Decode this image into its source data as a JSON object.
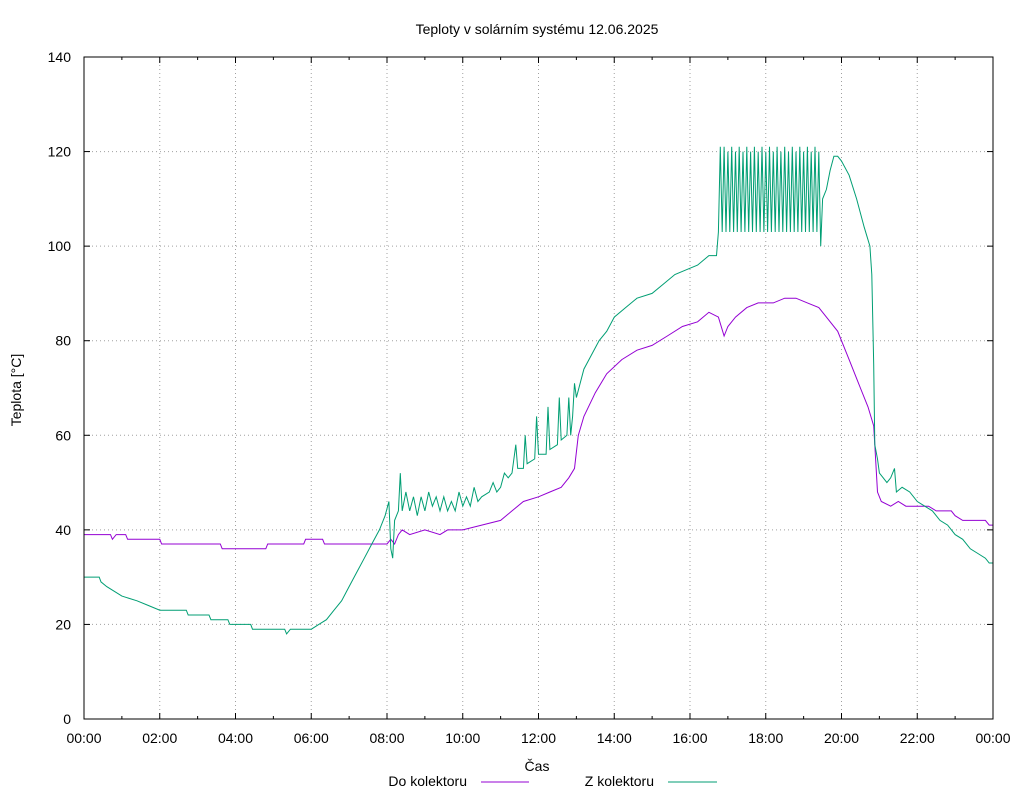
{
  "chart_data": {
    "type": "line",
    "title": "Teploty v solárním systému 12.06.2025",
    "xlabel": "Čas",
    "ylabel": "Teplota [°C]",
    "xlim": [
      0,
      24
    ],
    "ylim": [
      0,
      140
    ],
    "x_ticks": [
      "00:00",
      "02:00",
      "04:00",
      "06:00",
      "08:00",
      "10:00",
      "12:00",
      "14:00",
      "16:00",
      "18:00",
      "20:00",
      "22:00",
      "00:00"
    ],
    "y_ticks": [
      0,
      20,
      40,
      60,
      80,
      100,
      120,
      140
    ],
    "grid": true,
    "legend_position": "bottom-center",
    "series": [
      {
        "name": "Do kolektoru",
        "color": "#9400d3",
        "points": [
          [
            0,
            39
          ],
          [
            0.7,
            39
          ],
          [
            0.75,
            38
          ],
          [
            0.85,
            39
          ],
          [
            1.1,
            39
          ],
          [
            1.15,
            38
          ],
          [
            2.0,
            38
          ],
          [
            2.05,
            37
          ],
          [
            3.6,
            37
          ],
          [
            3.65,
            36
          ],
          [
            4.8,
            36
          ],
          [
            4.85,
            37
          ],
          [
            5.8,
            37
          ],
          [
            5.85,
            38
          ],
          [
            6.3,
            38
          ],
          [
            6.35,
            37
          ],
          [
            8.0,
            37
          ],
          [
            8.1,
            38
          ],
          [
            8.2,
            37
          ],
          [
            8.3,
            39
          ],
          [
            8.4,
            40
          ],
          [
            8.6,
            39
          ],
          [
            9.0,
            40
          ],
          [
            9.4,
            39
          ],
          [
            9.6,
            40
          ],
          [
            10.0,
            40
          ],
          [
            10.5,
            41
          ],
          [
            11.0,
            42
          ],
          [
            11.3,
            44
          ],
          [
            11.6,
            46
          ],
          [
            12.0,
            47
          ],
          [
            12.3,
            48
          ],
          [
            12.6,
            49
          ],
          [
            12.8,
            51
          ],
          [
            12.95,
            53
          ],
          [
            13.05,
            60
          ],
          [
            13.2,
            64
          ],
          [
            13.5,
            69
          ],
          [
            13.8,
            73
          ],
          [
            14.2,
            76
          ],
          [
            14.6,
            78
          ],
          [
            15.0,
            79
          ],
          [
            15.4,
            81
          ],
          [
            15.8,
            83
          ],
          [
            16.2,
            84
          ],
          [
            16.5,
            86
          ],
          [
            16.75,
            85
          ],
          [
            16.9,
            81
          ],
          [
            17.0,
            83
          ],
          [
            17.2,
            85
          ],
          [
            17.5,
            87
          ],
          [
            17.8,
            88
          ],
          [
            18.2,
            88
          ],
          [
            18.5,
            89
          ],
          [
            18.8,
            89
          ],
          [
            19.1,
            88
          ],
          [
            19.4,
            87
          ],
          [
            19.6,
            85
          ],
          [
            19.9,
            82
          ],
          [
            20.2,
            76
          ],
          [
            20.5,
            70
          ],
          [
            20.7,
            66
          ],
          [
            20.85,
            62
          ],
          [
            20.9,
            55
          ],
          [
            20.95,
            48
          ],
          [
            21.05,
            46
          ],
          [
            21.3,
            45
          ],
          [
            21.5,
            46
          ],
          [
            21.7,
            45
          ],
          [
            22.3,
            45
          ],
          [
            22.5,
            44
          ],
          [
            22.9,
            44
          ],
          [
            23.0,
            43
          ],
          [
            23.2,
            42
          ],
          [
            23.8,
            42
          ],
          [
            23.9,
            41
          ],
          [
            24.0,
            41
          ]
        ]
      },
      {
        "name": "Z kolektoru",
        "color": "#009e73",
        "points": [
          [
            0,
            30
          ],
          [
            0.4,
            30
          ],
          [
            0.45,
            29
          ],
          [
            0.6,
            28
          ],
          [
            0.8,
            27
          ],
          [
            1.0,
            26
          ],
          [
            1.4,
            25
          ],
          [
            1.7,
            24
          ],
          [
            2.0,
            23
          ],
          [
            2.7,
            23
          ],
          [
            2.75,
            22
          ],
          [
            3.3,
            22
          ],
          [
            3.35,
            21
          ],
          [
            3.8,
            21
          ],
          [
            3.85,
            20
          ],
          [
            4.4,
            20
          ],
          [
            4.45,
            19
          ],
          [
            5.3,
            19
          ],
          [
            5.35,
            18
          ],
          [
            5.45,
            19
          ],
          [
            5.9,
            19
          ],
          [
            6.0,
            19
          ],
          [
            6.2,
            20
          ],
          [
            6.4,
            21
          ],
          [
            6.6,
            23
          ],
          [
            6.8,
            25
          ],
          [
            7.0,
            28
          ],
          [
            7.2,
            31
          ],
          [
            7.4,
            34
          ],
          [
            7.6,
            37
          ],
          [
            7.8,
            40
          ],
          [
            7.95,
            43
          ],
          [
            8.05,
            46
          ],
          [
            8.1,
            36
          ],
          [
            8.15,
            34
          ],
          [
            8.2,
            42
          ],
          [
            8.3,
            44
          ],
          [
            8.35,
            52
          ],
          [
            8.4,
            44
          ],
          [
            8.5,
            48
          ],
          [
            8.6,
            44
          ],
          [
            8.7,
            47
          ],
          [
            8.8,
            43
          ],
          [
            8.9,
            47
          ],
          [
            9.0,
            44
          ],
          [
            9.1,
            48
          ],
          [
            9.2,
            45
          ],
          [
            9.3,
            47
          ],
          [
            9.4,
            44
          ],
          [
            9.5,
            47
          ],
          [
            9.6,
            44
          ],
          [
            9.7,
            46
          ],
          [
            9.8,
            44
          ],
          [
            9.9,
            48
          ],
          [
            10.0,
            45
          ],
          [
            10.1,
            47
          ],
          [
            10.2,
            45
          ],
          [
            10.3,
            49
          ],
          [
            10.4,
            46
          ],
          [
            10.5,
            47
          ],
          [
            10.7,
            48
          ],
          [
            10.8,
            50
          ],
          [
            10.9,
            48
          ],
          [
            11.0,
            49
          ],
          [
            11.1,
            52
          ],
          [
            11.2,
            51
          ],
          [
            11.3,
            52
          ],
          [
            11.4,
            58
          ],
          [
            11.45,
            53
          ],
          [
            11.6,
            53
          ],
          [
            11.65,
            60
          ],
          [
            11.7,
            54
          ],
          [
            11.9,
            55
          ],
          [
            11.95,
            64
          ],
          [
            12.0,
            56
          ],
          [
            12.2,
            56
          ],
          [
            12.25,
            66
          ],
          [
            12.3,
            57
          ],
          [
            12.5,
            58
          ],
          [
            12.55,
            68
          ],
          [
            12.6,
            59
          ],
          [
            12.75,
            60
          ],
          [
            12.8,
            68
          ],
          [
            12.85,
            60
          ],
          [
            12.9,
            64
          ],
          [
            12.95,
            71
          ],
          [
            13.0,
            68
          ],
          [
            13.2,
            74
          ],
          [
            13.4,
            77
          ],
          [
            13.6,
            80
          ],
          [
            13.8,
            82
          ],
          [
            14.0,
            85
          ],
          [
            14.3,
            87
          ],
          [
            14.6,
            89
          ],
          [
            15.0,
            90
          ],
          [
            15.3,
            92
          ],
          [
            15.6,
            94
          ],
          [
            15.9,
            95
          ],
          [
            16.2,
            96
          ],
          [
            16.5,
            98
          ],
          [
            16.7,
            98
          ],
          [
            16.75,
            103
          ],
          [
            16.8,
            121
          ],
          [
            16.85,
            103
          ],
          [
            16.9,
            121
          ],
          [
            16.95,
            103
          ],
          [
            17.0,
            120
          ],
          [
            17.05,
            103
          ],
          [
            17.1,
            121
          ],
          [
            17.15,
            103
          ],
          [
            17.2,
            120
          ],
          [
            17.25,
            103
          ],
          [
            17.3,
            121
          ],
          [
            17.35,
            103
          ],
          [
            17.4,
            120
          ],
          [
            17.45,
            103
          ],
          [
            17.5,
            121
          ],
          [
            17.55,
            103
          ],
          [
            17.6,
            120
          ],
          [
            17.65,
            103
          ],
          [
            17.7,
            121
          ],
          [
            17.75,
            103
          ],
          [
            17.8,
            120
          ],
          [
            17.85,
            103
          ],
          [
            17.9,
            121
          ],
          [
            17.95,
            103
          ],
          [
            18.0,
            120
          ],
          [
            18.05,
            103
          ],
          [
            18.1,
            121
          ],
          [
            18.15,
            103
          ],
          [
            18.2,
            120
          ],
          [
            18.25,
            103
          ],
          [
            18.3,
            121
          ],
          [
            18.35,
            103
          ],
          [
            18.4,
            120
          ],
          [
            18.45,
            103
          ],
          [
            18.5,
            121
          ],
          [
            18.55,
            103
          ],
          [
            18.6,
            120
          ],
          [
            18.65,
            103
          ],
          [
            18.7,
            121
          ],
          [
            18.75,
            103
          ],
          [
            18.8,
            120
          ],
          [
            18.85,
            103
          ],
          [
            18.9,
            121
          ],
          [
            18.95,
            103
          ],
          [
            19.0,
            120
          ],
          [
            19.05,
            103
          ],
          [
            19.1,
            121
          ],
          [
            19.15,
            103
          ],
          [
            19.2,
            120
          ],
          [
            19.25,
            103
          ],
          [
            19.3,
            121
          ],
          [
            19.35,
            103
          ],
          [
            19.4,
            120
          ],
          [
            19.45,
            100
          ],
          [
            19.5,
            110
          ],
          [
            19.6,
            112
          ],
          [
            19.7,
            116
          ],
          [
            19.8,
            119
          ],
          [
            19.9,
            119
          ],
          [
            20.0,
            118
          ],
          [
            20.2,
            115
          ],
          [
            20.4,
            110
          ],
          [
            20.6,
            104
          ],
          [
            20.75,
            100
          ],
          [
            20.8,
            94
          ],
          [
            20.85,
            75
          ],
          [
            20.88,
            58
          ],
          [
            20.95,
            55
          ],
          [
            21.0,
            52
          ],
          [
            21.1,
            51
          ],
          [
            21.2,
            50
          ],
          [
            21.3,
            51
          ],
          [
            21.4,
            53
          ],
          [
            21.45,
            48
          ],
          [
            21.6,
            49
          ],
          [
            21.8,
            48
          ],
          [
            22.0,
            46
          ],
          [
            22.2,
            45
          ],
          [
            22.4,
            44
          ],
          [
            22.6,
            42
          ],
          [
            22.8,
            41
          ],
          [
            23.0,
            39
          ],
          [
            23.2,
            38
          ],
          [
            23.4,
            36
          ],
          [
            23.6,
            35
          ],
          [
            23.8,
            34
          ],
          [
            23.9,
            33
          ],
          [
            24.0,
            33
          ]
        ]
      }
    ]
  }
}
